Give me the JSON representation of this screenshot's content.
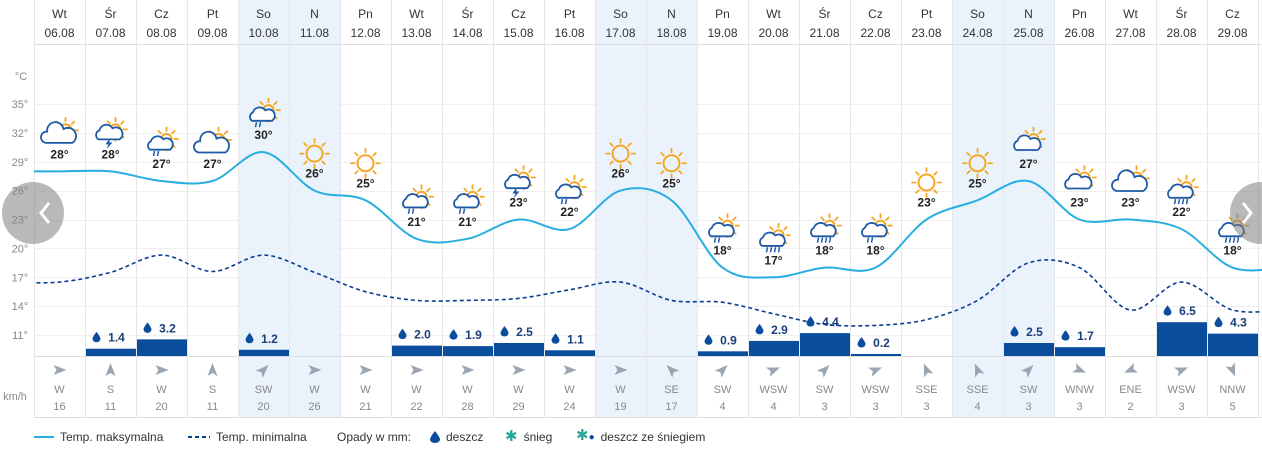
{
  "chart_data": {
    "type": "line",
    "title": "",
    "ylabel": "°C",
    "precip_unit_label": "km/h",
    "ylim": [
      8,
      38
    ],
    "yticks": [
      {
        "value": 35,
        "label": "35°"
      },
      {
        "value": 32,
        "label": "32°"
      },
      {
        "value": 29,
        "label": "29°"
      },
      {
        "value": 26,
        "label": "26°"
      },
      {
        "value": 23,
        "label": "23°"
      },
      {
        "value": 20,
        "label": "20°"
      },
      {
        "value": 17,
        "label": "17°"
      },
      {
        "value": 14,
        "label": "14°"
      },
      {
        "value": 11,
        "label": "11°"
      }
    ],
    "days": [
      {
        "dow": "Wt",
        "date": "06.08",
        "weekend": false,
        "tmax": 28,
        "tmin": 16.5,
        "max_label": "28°",
        "precip": null,
        "precip_label": "",
        "wind_dir": "W",
        "wind_speed": "16",
        "icon": "partly-cloudy-icon"
      },
      {
        "dow": "Śr",
        "date": "07.08",
        "weekend": false,
        "tmax": 28,
        "tmin": 17.5,
        "max_label": "28°",
        "precip": 1.4,
        "precip_label": "1.4",
        "wind_dir": "S",
        "wind_speed": "11",
        "icon": "thunderstorm-icon"
      },
      {
        "dow": "Cz",
        "date": "08.08",
        "weekend": false,
        "tmax": 27,
        "tmin": 19.3,
        "max_label": "27°",
        "precip": 3.2,
        "precip_label": "3.2",
        "wind_dir": "W",
        "wind_speed": "20",
        "icon": "sun-cloud-rain-icon"
      },
      {
        "dow": "Pt",
        "date": "09.08",
        "weekend": false,
        "tmax": 27,
        "tmin": 17.6,
        "max_label": "27°",
        "precip": null,
        "precip_label": "",
        "wind_dir": "S",
        "wind_speed": "11",
        "icon": "partly-cloudy-icon"
      },
      {
        "dow": "So",
        "date": "10.08",
        "weekend": true,
        "tmax": 30,
        "tmin": 19.3,
        "max_label": "30°",
        "precip": 1.2,
        "precip_label": "1.2",
        "wind_dir": "SW",
        "wind_speed": "20",
        "icon": "sun-cloud-rain-icon"
      },
      {
        "dow": "N",
        "date": "11.08",
        "weekend": true,
        "tmax": 26,
        "tmin": 17.5,
        "max_label": "26°",
        "precip": null,
        "precip_label": "",
        "wind_dir": "W",
        "wind_speed": "26",
        "icon": "sun-icon"
      },
      {
        "dow": "Pn",
        "date": "12.08",
        "weekend": false,
        "tmax": 25,
        "tmin": 15.5,
        "max_label": "25°",
        "precip": null,
        "precip_label": "",
        "wind_dir": "W",
        "wind_speed": "21",
        "icon": "sun-icon"
      },
      {
        "dow": "Wt",
        "date": "13.08",
        "weekend": false,
        "tmax": 21,
        "tmin": 14.6,
        "max_label": "21°",
        "precip": 2.0,
        "precip_label": "2.0",
        "wind_dir": "W",
        "wind_speed": "22",
        "icon": "sun-cloud-rain-icon"
      },
      {
        "dow": "Śr",
        "date": "14.08",
        "weekend": false,
        "tmax": 21,
        "tmin": 14.6,
        "max_label": "21°",
        "precip": 1.9,
        "precip_label": "1.9",
        "wind_dir": "W",
        "wind_speed": "28",
        "icon": "sun-cloud-rain-icon"
      },
      {
        "dow": "Cz",
        "date": "15.08",
        "weekend": false,
        "tmax": 23,
        "tmin": 14.8,
        "max_label": "23°",
        "precip": 2.5,
        "precip_label": "2.5",
        "wind_dir": "W",
        "wind_speed": "29",
        "icon": "sun-cloud-storm-icon"
      },
      {
        "dow": "Pt",
        "date": "16.08",
        "weekend": false,
        "tmax": 22,
        "tmin": 15.7,
        "max_label": "22°",
        "precip": 1.1,
        "precip_label": "1.1",
        "wind_dir": "W",
        "wind_speed": "24",
        "icon": "sun-cloud-rain-icon"
      },
      {
        "dow": "So",
        "date": "17.08",
        "weekend": true,
        "tmax": 26,
        "tmin": 16.5,
        "max_label": "26°",
        "precip": null,
        "precip_label": "",
        "wind_dir": "W",
        "wind_speed": "19",
        "icon": "sun-icon"
      },
      {
        "dow": "N",
        "date": "18.08",
        "weekend": true,
        "tmax": 25,
        "tmin": 14.6,
        "max_label": "25°",
        "precip": null,
        "precip_label": "",
        "wind_dir": "SE",
        "wind_speed": "17",
        "icon": "sun-icon"
      },
      {
        "dow": "Pn",
        "date": "19.08",
        "weekend": false,
        "tmax": 18,
        "tmin": 14.4,
        "max_label": "18°",
        "precip": 0.9,
        "precip_label": "0.9",
        "wind_dir": "SW",
        "wind_speed": "4",
        "icon": "sun-cloud-rain-icon"
      },
      {
        "dow": "Wt",
        "date": "20.08",
        "weekend": false,
        "tmax": 17,
        "tmin": 13.2,
        "max_label": "17°",
        "precip": 2.9,
        "precip_label": "2.9",
        "wind_dir": "WSW",
        "wind_speed": "4",
        "icon": "sun-cloud-heavy-rain-icon"
      },
      {
        "dow": "Śr",
        "date": "21.08",
        "weekend": false,
        "tmax": 18,
        "tmin": 12.1,
        "max_label": "18°",
        "precip": 4.4,
        "precip_label": "4.4",
        "wind_dir": "SW",
        "wind_speed": "3",
        "icon": "sun-cloud-heavy-rain-icon"
      },
      {
        "dow": "Cz",
        "date": "22.08",
        "weekend": false,
        "tmax": 18,
        "tmin": 12.0,
        "max_label": "18°",
        "precip": 0.2,
        "precip_label": "0.2",
        "wind_dir": "WSW",
        "wind_speed": "3",
        "icon": "sun-cloud-rain-icon"
      },
      {
        "dow": "Pt",
        "date": "23.08",
        "weekend": false,
        "tmax": 23,
        "tmin": 12.6,
        "max_label": "23°",
        "precip": null,
        "precip_label": "",
        "wind_dir": "SSE",
        "wind_speed": "3",
        "icon": "sun-icon"
      },
      {
        "dow": "So",
        "date": "24.08",
        "weekend": true,
        "tmax": 25,
        "tmin": 14.6,
        "max_label": "25°",
        "precip": null,
        "precip_label": "",
        "wind_dir": "SSE",
        "wind_speed": "4",
        "icon": "sun-icon"
      },
      {
        "dow": "N",
        "date": "25.08",
        "weekend": true,
        "tmax": 27,
        "tmin": 18.5,
        "max_label": "27°",
        "precip": 2.5,
        "precip_label": "2.5",
        "wind_dir": "SW",
        "wind_speed": "3",
        "icon": "sun-cloud-icon"
      },
      {
        "dow": "Pn",
        "date": "26.08",
        "weekend": false,
        "tmax": 23,
        "tmin": 18.0,
        "max_label": "23°",
        "precip": 1.7,
        "precip_label": "1.7",
        "wind_dir": "WNW",
        "wind_speed": "3",
        "icon": "sun-cloud-icon"
      },
      {
        "dow": "Wt",
        "date": "27.08",
        "weekend": false,
        "tmax": 23,
        "tmin": 13.6,
        "max_label": "23°",
        "precip": null,
        "precip_label": "",
        "wind_dir": "ENE",
        "wind_speed": "2",
        "icon": "partly-cloudy-icon"
      },
      {
        "dow": "Śr",
        "date": "28.08",
        "weekend": false,
        "tmax": 22,
        "tmin": 16.5,
        "max_label": "22°",
        "precip": 6.5,
        "precip_label": "6.5",
        "wind_dir": "WSW",
        "wind_speed": "3",
        "icon": "sun-cloud-heavy-rain-icon"
      },
      {
        "dow": "Cz",
        "date": "29.08",
        "weekend": false,
        "tmax": 18,
        "tmin": 13.6,
        "max_label": "18°",
        "precip": 4.3,
        "precip_label": "4.3",
        "wind_dir": "NNW",
        "wind_speed": "5",
        "icon": "sun-cloud-heavy-rain-icon"
      }
    ]
  },
  "legend": {
    "max_temp": "Temp. maksymalna",
    "min_temp": "Temp. minimalna",
    "precip_title": "Opady w mm:",
    "rain": "deszcz",
    "snow": "śnieg",
    "rain_snow": "deszcz ze śniegiem"
  },
  "colors": {
    "max_line": "#29aee0",
    "min_line": "#0a3d91",
    "precip_bar": "#0a4d9c",
    "weekend_bg": "#eaf3fc",
    "grid": "#dddddd",
    "sun": "#f5a623",
    "cloud": "#1e5aa8",
    "snow": "#2aa79b"
  }
}
